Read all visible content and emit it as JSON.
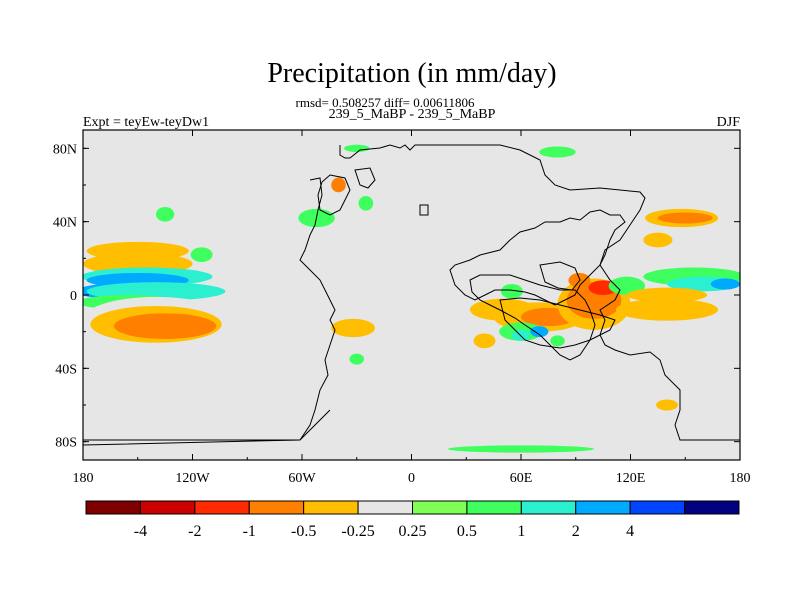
{
  "chart_data": {
    "type": "heatmap",
    "title": "Precipitation (in mm/day)",
    "stats_line": "rmsd= 0.508257 diff= 0.00611806",
    "subtitle": "239_5_MaBP - 239_5_MaBP",
    "left_label": "Expt = teyEw-teyDw1",
    "right_label": "DJF",
    "xlim": [
      -180,
      180
    ],
    "ylim": [
      -90,
      90
    ],
    "x_ticks": [
      {
        "value": -180,
        "label": "180"
      },
      {
        "value": -120,
        "label": "120W"
      },
      {
        "value": -60,
        "label": "60W"
      },
      {
        "value": 0,
        "label": "0"
      },
      {
        "value": 60,
        "label": "60E"
      },
      {
        "value": 120,
        "label": "120E"
      },
      {
        "value": 180,
        "label": "180"
      }
    ],
    "y_ticks": [
      {
        "value": 80,
        "label": "80N"
      },
      {
        "value": 40,
        "label": "40N"
      },
      {
        "value": 0,
        "label": "0"
      },
      {
        "value": -40,
        "label": "40S"
      },
      {
        "value": -80,
        "label": "80S"
      }
    ],
    "colorbar": {
      "colors": [
        "#7f0000",
        "#cc0000",
        "#ff2a00",
        "#ff7f00",
        "#ffbf00",
        "#e6e6e6",
        "#7fff55",
        "#3fff5f",
        "#2af0d0",
        "#00aaff",
        "#0044ff",
        "#000080"
      ],
      "labels": [
        "-4",
        "-2",
        "-1",
        "-0.5",
        "-0.25",
        "0.25",
        "0.5",
        "1",
        "2",
        "4"
      ]
    },
    "background_color": "#e6e6e6",
    "anomalies": [
      {
        "lon": -160,
        "lat": 32,
        "rx": 18,
        "ry": 5,
        "level": -0.25
      },
      {
        "lon": -145,
        "lat": 28,
        "rx": 35,
        "ry": 7,
        "level": -0.25
      },
      {
        "lon": -150,
        "lat": 24,
        "rx": 28,
        "ry": 5,
        "level": -0.5
      },
      {
        "lon": -150,
        "lat": 17,
        "rx": 30,
        "ry": 6,
        "level": -0.5
      },
      {
        "lon": -145,
        "lat": 10,
        "rx": 36,
        "ry": 5,
        "level": 1
      },
      {
        "lon": -150,
        "lat": 8,
        "rx": 28,
        "ry": 4,
        "level": 2
      },
      {
        "lon": -165,
        "lat": 2,
        "rx": 18,
        "ry": 4,
        "level": 2
      },
      {
        "lon": -140,
        "lat": 2,
        "rx": 38,
        "ry": 5,
        "level": 1
      },
      {
        "lon": -155,
        "lat": -4,
        "rx": 28,
        "ry": 4,
        "level": 0.5
      },
      {
        "lon": -140,
        "lat": -15,
        "rx": 42,
        "ry": 14,
        "level": -0.25
      },
      {
        "lon": -140,
        "lat": -16,
        "rx": 36,
        "ry": 10,
        "level": -0.5
      },
      {
        "lon": -135,
        "lat": -17,
        "rx": 28,
        "ry": 7,
        "level": -1
      },
      {
        "lon": -170,
        "lat": -28,
        "rx": 12,
        "ry": 5,
        "level": -0.25
      },
      {
        "lon": -176,
        "lat": 42,
        "rx": 6,
        "ry": 3,
        "level": -0.25
      },
      {
        "lon": -135,
        "lat": 44,
        "rx": 5,
        "ry": 4,
        "level": 0.5
      },
      {
        "lon": -115,
        "lat": 22,
        "rx": 6,
        "ry": 4,
        "level": 0.5
      },
      {
        "lon": -52,
        "lat": 42,
        "rx": 10,
        "ry": 5,
        "level": 0.5
      },
      {
        "lon": -40,
        "lat": 60,
        "rx": 4,
        "ry": 4,
        "level": -1
      },
      {
        "lon": -25,
        "lat": 50,
        "rx": 4,
        "ry": 4,
        "level": 0.5
      },
      {
        "lon": -32,
        "lat": -18,
        "rx": 12,
        "ry": 5,
        "level": -0.5
      },
      {
        "lon": -30,
        "lat": -35,
        "rx": 4,
        "ry": 3,
        "level": 0.5
      },
      {
        "lon": -30,
        "lat": 80,
        "rx": 7,
        "ry": 2,
        "level": 0.5
      },
      {
        "lon": 80,
        "lat": 78,
        "rx": 10,
        "ry": 3,
        "level": 0.5
      },
      {
        "lon": 55,
        "lat": 2,
        "rx": 6,
        "ry": 4,
        "level": 0.5
      },
      {
        "lon": 50,
        "lat": -8,
        "rx": 18,
        "ry": 6,
        "level": -0.5
      },
      {
        "lon": 70,
        "lat": -12,
        "rx": 25,
        "ry": 8,
        "level": -0.5
      },
      {
        "lon": 75,
        "lat": -12,
        "rx": 15,
        "ry": 5,
        "level": -1
      },
      {
        "lon": 100,
        "lat": -5,
        "rx": 20,
        "ry": 14,
        "level": -0.5
      },
      {
        "lon": 100,
        "lat": -3,
        "rx": 15,
        "ry": 10,
        "level": -1
      },
      {
        "lon": 105,
        "lat": 4,
        "rx": 8,
        "ry": 4,
        "level": -2
      },
      {
        "lon": 92,
        "lat": 8,
        "rx": 6,
        "ry": 4,
        "level": -1
      },
      {
        "lon": 118,
        "lat": 5,
        "rx": 10,
        "ry": 5,
        "level": 0.5
      },
      {
        "lon": 60,
        "lat": -20,
        "rx": 12,
        "ry": 5,
        "level": 0.5
      },
      {
        "lon": 60,
        "lat": -22,
        "rx": 5,
        "ry": 3,
        "level": 1
      },
      {
        "lon": 70,
        "lat": -20,
        "rx": 5,
        "ry": 3,
        "level": 2
      },
      {
        "lon": 80,
        "lat": -25,
        "rx": 4,
        "ry": 3,
        "level": 0.5
      },
      {
        "lon": 40,
        "lat": -25,
        "rx": 6,
        "ry": 4,
        "level": -0.5
      },
      {
        "lon": 148,
        "lat": 42,
        "rx": 20,
        "ry": 5,
        "level": -0.5
      },
      {
        "lon": 150,
        "lat": 42,
        "rx": 15,
        "ry": 3,
        "level": -1
      },
      {
        "lon": 135,
        "lat": 30,
        "rx": 8,
        "ry": 4,
        "level": -0.5
      },
      {
        "lon": 155,
        "lat": 10,
        "rx": 28,
        "ry": 5,
        "level": 0.5
      },
      {
        "lon": 160,
        "lat": 6,
        "rx": 20,
        "ry": 4,
        "level": 1
      },
      {
        "lon": 172,
        "lat": 6,
        "rx": 8,
        "ry": 3,
        "level": 2
      },
      {
        "lon": 140,
        "lat": 0,
        "rx": 22,
        "ry": 4,
        "level": -0.5
      },
      {
        "lon": 140,
        "lat": -8,
        "rx": 28,
        "ry": 6,
        "level": -0.5
      },
      {
        "lon": 140,
        "lat": -25,
        "rx": 30,
        "ry": 5,
        "level": -0.25
      },
      {
        "lon": 150,
        "lat": -40,
        "rx": 8,
        "ry": 3,
        "level": -0.25
      },
      {
        "lon": 140,
        "lat": -60,
        "rx": 6,
        "ry": 3,
        "level": -0.5
      },
      {
        "lon": 165,
        "lat": -55,
        "rx": 6,
        "ry": 2,
        "level": -0.25
      },
      {
        "lon": 60,
        "lat": -84,
        "rx": 40,
        "ry": 2,
        "level": 0.5
      }
    ]
  }
}
